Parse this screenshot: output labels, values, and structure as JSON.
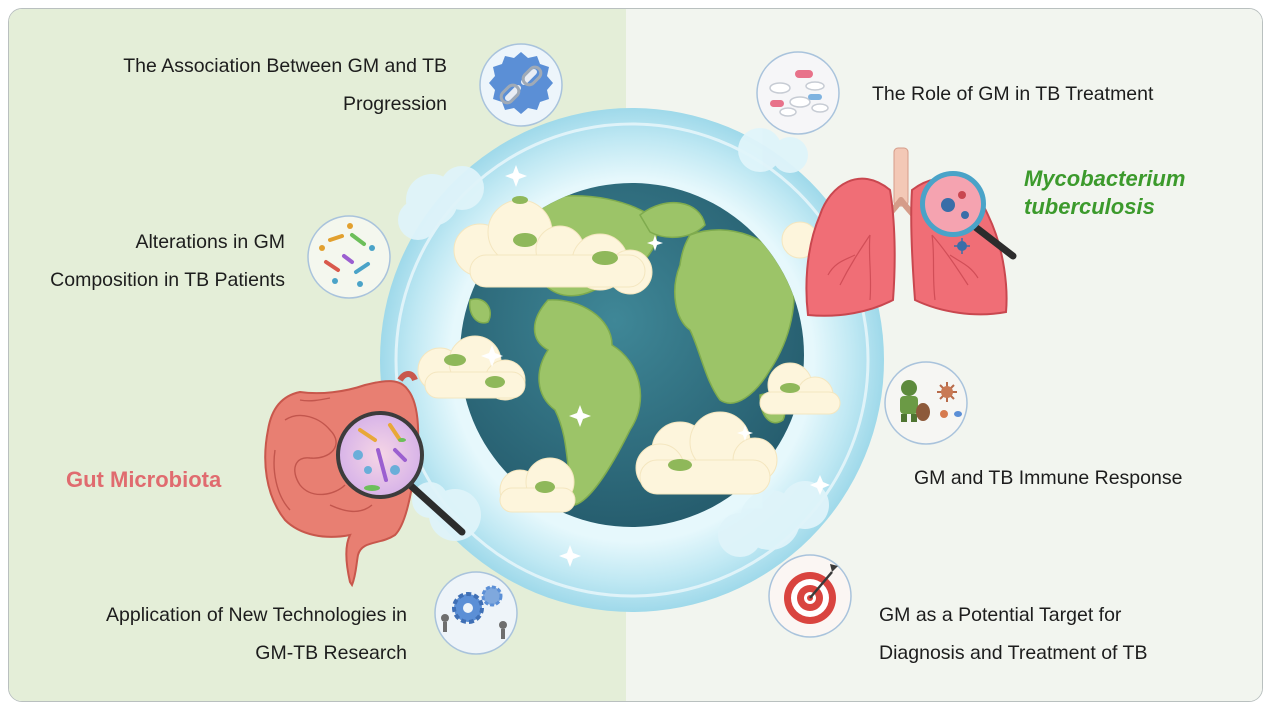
{
  "title_left": "Gut Microbiota",
  "title_right": {
    "line1": "Mycobacterium",
    "line2": "tuberculosis"
  },
  "topics": {
    "association": {
      "line1": "The Association Between GM and TB",
      "line2": "Progression",
      "icon": "link-icon"
    },
    "alterations": {
      "line1": "Alterations in GM",
      "line2": "Composition in TB Patients",
      "icon": "microbes-icon"
    },
    "technologies": {
      "line1": "Application of New Technologies in",
      "line2": "GM-TB Research",
      "icon": "gears-icon"
    },
    "treatment": {
      "line1": "The Role of GM in TB Treatment",
      "icon": "pills-icon"
    },
    "immune": {
      "line1": "GM and TB Immune Response",
      "icon": "immune-defender-icon"
    },
    "target": {
      "line1": "GM as a Potential Target for",
      "line2": "Diagnosis and Treatment of TB",
      "icon": "target-icon"
    }
  },
  "colors": {
    "left_panel": "#e4eed8",
    "right_panel": "#f2f5ef",
    "gut_title": "#e06b6f",
    "myco_title": "#3c9a2c",
    "ocean": "#2f6f80",
    "land": "#9cc468",
    "halo": "#c8ecf5"
  }
}
